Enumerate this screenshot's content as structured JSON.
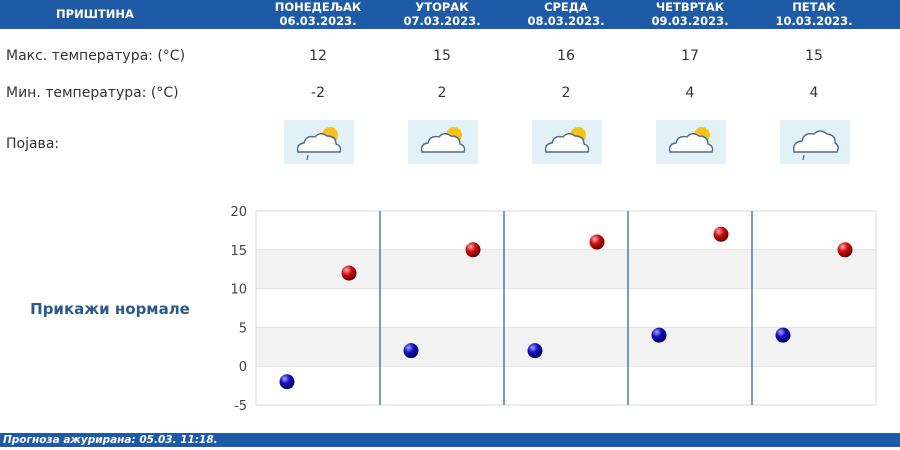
{
  "header": {
    "city": "ПРИШТИНА",
    "days": [
      {
        "name": "ПОНЕДЕЉАК",
        "date": "06.03.2023."
      },
      {
        "name": "УТОРАК",
        "date": "07.03.2023."
      },
      {
        "name": "СРЕДА",
        "date": "08.03.2023."
      },
      {
        "name": "ЧЕТВРТАК",
        "date": "09.03.2023."
      },
      {
        "name": "ПЕТАК",
        "date": "10.03.2023."
      }
    ]
  },
  "rows": {
    "max_label": "Макс. температура: (°C)",
    "min_label": "Мин. температура: (°C)",
    "phenomenon_label": "Појава:",
    "max": [
      "12",
      "15",
      "16",
      "17",
      "15"
    ],
    "min": [
      "-2",
      "2",
      "2",
      "4",
      "4"
    ],
    "icons": [
      "partly-cloudy-drizzle-icon",
      "partly-cloudy-icon",
      "partly-cloudy-icon",
      "partly-cloudy-icon",
      "cloudy-drizzle-icon"
    ]
  },
  "normals_button": "Прикажи нормале",
  "chart_data": {
    "type": "scatter",
    "ylim": [
      -5,
      20
    ],
    "y_ticks": [
      "20",
      "15",
      "10",
      "5",
      "0",
      "-5"
    ],
    "grid": true,
    "series": [
      {
        "values": [
          -2,
          2,
          2,
          4,
          4
        ],
        "color": "#1010c8"
      },
      {
        "values": [
          12,
          15,
          16,
          17,
          15
        ],
        "color": "#d01010"
      }
    ]
  },
  "colors": {
    "header_bg": "#1f5aa6",
    "max_dot": "#d01010",
    "min_dot": "#1010c8",
    "band": "#f2f2f2"
  },
  "footer": {
    "text": "Прогноза ажурирана:  05.03.  11:18."
  }
}
